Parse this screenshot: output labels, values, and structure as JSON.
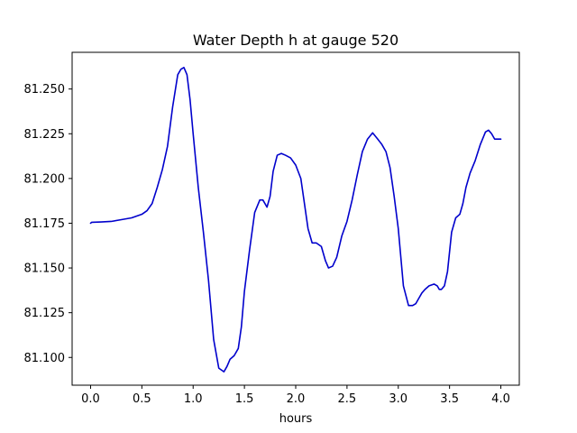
{
  "chart_data": {
    "type": "line",
    "title": "Water Depth h at gauge 520",
    "xlabel": "hours",
    "ylabel": "",
    "xlim": [
      -0.18,
      4.18
    ],
    "ylim": [
      81.0845,
      81.2705
    ],
    "grid": false,
    "legend": "none",
    "x_ticks": [
      0.0,
      0.5,
      1.0,
      1.5,
      2.0,
      2.5,
      3.0,
      3.5,
      4.0
    ],
    "x_tick_labels": [
      "0.0",
      "0.5",
      "1.0",
      "1.5",
      "2.0",
      "2.5",
      "3.0",
      "3.5",
      "4.0"
    ],
    "y_ticks": [
      81.1,
      81.125,
      81.15,
      81.175,
      81.2,
      81.225,
      81.25
    ],
    "y_tick_labels": [
      "81.100",
      "81.125",
      "81.150",
      "81.175",
      "81.200",
      "81.225",
      "81.250"
    ],
    "line_color": "#0000cc",
    "series": [
      {
        "x": [
          0.0,
          0.01,
          0.1,
          0.2,
          0.3,
          0.4,
          0.5,
          0.55,
          0.6,
          0.65,
          0.7,
          0.75,
          0.8,
          0.85,
          0.88,
          0.91,
          0.94,
          0.97,
          1.0,
          1.05,
          1.1,
          1.15,
          1.2,
          1.25,
          1.3,
          1.33,
          1.36,
          1.4,
          1.44,
          1.47,
          1.5,
          1.55,
          1.6,
          1.65,
          1.68,
          1.72,
          1.75,
          1.78,
          1.82,
          1.86,
          1.9,
          1.95,
          2.0,
          2.05,
          2.08,
          2.12,
          2.16,
          2.2,
          2.25,
          2.29,
          2.32,
          2.36,
          2.4,
          2.45,
          2.5,
          2.55,
          2.6,
          2.65,
          2.7,
          2.75,
          2.8,
          2.82,
          2.84,
          2.88,
          2.92,
          2.96,
          3.0,
          3.05,
          3.1,
          3.14,
          3.17,
          3.2,
          3.23,
          3.26,
          3.3,
          3.35,
          3.38,
          3.4,
          3.42,
          3.45,
          3.48,
          3.52,
          3.56,
          3.6,
          3.63,
          3.66,
          3.7,
          3.75,
          3.8,
          3.85,
          3.88,
          3.91,
          3.94,
          3.97,
          4.0
        ],
        "y": [
          81.175,
          81.1755,
          81.1757,
          81.176,
          81.177,
          81.178,
          81.18,
          81.182,
          81.186,
          81.195,
          81.205,
          81.218,
          81.24,
          81.258,
          81.261,
          81.262,
          81.258,
          81.244,
          81.225,
          81.195,
          81.17,
          81.143,
          81.11,
          81.094,
          81.092,
          81.095,
          81.099,
          81.101,
          81.105,
          81.117,
          81.137,
          81.16,
          81.181,
          81.188,
          81.188,
          81.184,
          81.19,
          81.204,
          81.213,
          81.214,
          81.213,
          81.2115,
          81.2075,
          81.2,
          81.188,
          81.172,
          81.164,
          81.164,
          81.162,
          81.154,
          81.15,
          81.151,
          81.156,
          81.168,
          81.176,
          81.188,
          81.202,
          81.215,
          81.222,
          81.2255,
          81.222,
          81.2205,
          81.219,
          81.215,
          81.206,
          81.19,
          81.172,
          81.14,
          81.129,
          81.129,
          81.13,
          81.133,
          81.136,
          81.138,
          81.14,
          81.141,
          81.14,
          81.138,
          81.138,
          81.14,
          81.148,
          81.17,
          81.178,
          81.18,
          81.186,
          81.195,
          81.203,
          81.21,
          81.219,
          81.226,
          81.227,
          81.225,
          81.222,
          81.222,
          81.222
        ]
      }
    ]
  }
}
